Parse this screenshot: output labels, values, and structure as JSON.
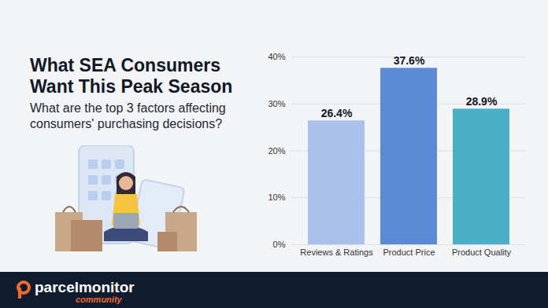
{
  "chart_data": {
    "type": "bar",
    "title": "What SEA Consumers Want This Peak Season",
    "subtitle": "What are the top 3 factors affecting consumers' purchasing decisions?",
    "categories": [
      "Reviews & Ratings",
      "Product Price",
      "Product Quality"
    ],
    "values": [
      26.4,
      37.6,
      28.9
    ],
    "value_labels": [
      "26.4%",
      "37.6%",
      "28.9%"
    ],
    "colors": [
      "#a9c1eb",
      "#5b8bd5",
      "#4cafc8"
    ],
    "ylim": [
      0,
      40
    ],
    "yticks": [
      {
        "value": 0,
        "label": "0%"
      },
      {
        "value": 10,
        "label": "10%"
      },
      {
        "value": 20,
        "label": "20%"
      },
      {
        "value": 30,
        "label": "30%"
      },
      {
        "value": 40,
        "label": "40%"
      }
    ],
    "grid": true,
    "data_labels": true
  },
  "footer": {
    "brand": "parcelmonitor",
    "tagline": "community"
  }
}
